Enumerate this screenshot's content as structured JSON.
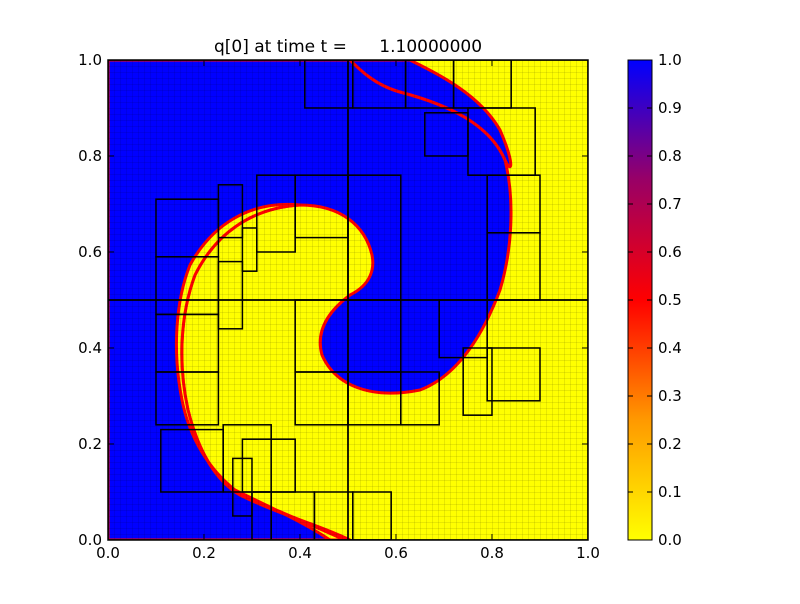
{
  "chart_data": {
    "type": "heatmap",
    "title": "q[0] at time t =      1.10000000",
    "field_name": "q[0]",
    "time_value": 1.1,
    "xlabel": "",
    "ylabel": "",
    "xlim": [
      0.0,
      1.0
    ],
    "ylim": [
      0.0,
      1.0
    ],
    "xticks": [
      "0.0",
      "0.2",
      "0.4",
      "0.6",
      "0.8",
      "1.0"
    ],
    "yticks": [
      "0.0",
      "0.2",
      "0.4",
      "0.6",
      "0.8",
      "1.0"
    ],
    "colorbar": {
      "range": [
        0.0,
        1.0
      ],
      "ticks": [
        "0.0",
        "0.1",
        "0.2",
        "0.3",
        "0.4",
        "0.5",
        "0.6",
        "0.7",
        "0.8",
        "0.9",
        "1.0"
      ],
      "colormap": [
        {
          "value": 0.0,
          "color": "#ffff00"
        },
        {
          "value": 0.25,
          "color": "#ff9900"
        },
        {
          "value": 0.5,
          "color": "#ff0000"
        },
        {
          "value": 0.75,
          "color": "#990066"
        },
        {
          "value": 1.0,
          "color": "#0000ff"
        }
      ]
    },
    "field_colors": {
      "high": "#0000ff",
      "low": "#ffff00",
      "interface": "#ff0000"
    },
    "grid": "adaptive mesh refinement patches with fine grid lines",
    "amr_patches": [
      {
        "x": [
          0.0,
          0.5
        ],
        "y": [
          0.5,
          1.0
        ]
      },
      {
        "x": [
          0.5,
          1.0
        ],
        "y": [
          0.5,
          1.0
        ]
      },
      {
        "x": [
          0.0,
          0.5
        ],
        "y": [
          0.0,
          0.5
        ]
      },
      {
        "x": [
          0.5,
          1.0
        ],
        "y": [
          0.0,
          0.5
        ]
      },
      {
        "x": [
          0.41,
          0.51
        ],
        "y": [
          0.9,
          1.0
        ]
      },
      {
        "x": [
          0.51,
          0.62
        ],
        "y": [
          0.9,
          1.0
        ]
      },
      {
        "x": [
          0.62,
          0.72
        ],
        "y": [
          0.9,
          1.0
        ]
      },
      {
        "x": [
          0.72,
          0.84
        ],
        "y": [
          0.9,
          1.0
        ]
      },
      {
        "x": [
          0.66,
          0.75
        ],
        "y": [
          0.8,
          0.89
        ]
      },
      {
        "x": [
          0.75,
          0.89
        ],
        "y": [
          0.76,
          0.9
        ]
      },
      {
        "x": [
          0.1,
          0.23
        ],
        "y": [
          0.59,
          0.71
        ]
      },
      {
        "x": [
          0.1,
          0.23
        ],
        "y": [
          0.47,
          0.59
        ]
      },
      {
        "x": [
          0.1,
          0.23
        ],
        "y": [
          0.35,
          0.47
        ]
      },
      {
        "x": [
          0.1,
          0.23
        ],
        "y": [
          0.24,
          0.35
        ]
      },
      {
        "x": [
          0.11,
          0.24
        ],
        "y": [
          0.1,
          0.23
        ]
      },
      {
        "x": [
          0.23,
          0.28
        ],
        "y": [
          0.63,
          0.74
        ]
      },
      {
        "x": [
          0.23,
          0.28
        ],
        "y": [
          0.44,
          0.58
        ]
      },
      {
        "x": [
          0.28,
          0.31
        ],
        "y": [
          0.56,
          0.65
        ]
      },
      {
        "x": [
          0.31,
          0.39
        ],
        "y": [
          0.6,
          0.76
        ]
      },
      {
        "x": [
          0.39,
          0.5
        ],
        "y": [
          0.63,
          0.76
        ]
      },
      {
        "x": [
          0.5,
          0.61
        ],
        "y": [
          0.5,
          0.76
        ]
      },
      {
        "x": [
          0.39,
          0.61
        ],
        "y": [
          0.35,
          0.5
        ]
      },
      {
        "x": [
          0.39,
          0.5
        ],
        "y": [
          0.24,
          0.35
        ]
      },
      {
        "x": [
          0.5,
          0.61
        ],
        "y": [
          0.24,
          0.35
        ]
      },
      {
        "x": [
          0.61,
          0.69
        ],
        "y": [
          0.24,
          0.35
        ]
      },
      {
        "x": [
          0.69,
          0.79
        ],
        "y": [
          0.38,
          0.5
        ]
      },
      {
        "x": [
          0.79,
          0.9
        ],
        "y": [
          0.5,
          0.64
        ]
      },
      {
        "x": [
          0.79,
          0.9
        ],
        "y": [
          0.64,
          0.76
        ]
      },
      {
        "x": [
          0.79,
          0.9
        ],
        "y": [
          0.29,
          0.4
        ]
      },
      {
        "x": [
          0.74,
          0.8
        ],
        "y": [
          0.26,
          0.4
        ]
      },
      {
        "x": [
          0.24,
          0.34
        ],
        "y": [
          0.1,
          0.24
        ]
      },
      {
        "x": [
          0.26,
          0.3
        ],
        "y": [
          0.05,
          0.17
        ]
      },
      {
        "x": [
          0.3,
          0.34
        ],
        "y": [
          0.0,
          0.1
        ]
      },
      {
        "x": [
          0.34,
          0.43
        ],
        "y": [
          0.0,
          0.1
        ]
      },
      {
        "x": [
          0.43,
          0.51
        ],
        "y": [
          0.0,
          0.1
        ]
      },
      {
        "x": [
          0.51,
          0.59
        ],
        "y": [
          0.0,
          0.1
        ]
      },
      {
        "x": [
          0.28,
          0.39
        ],
        "y": [
          0.1,
          0.21
        ]
      }
    ]
  }
}
